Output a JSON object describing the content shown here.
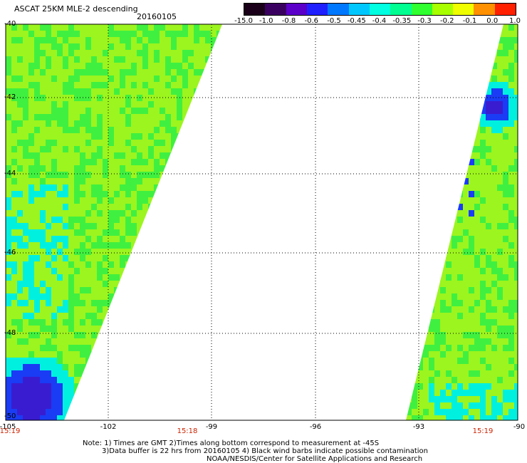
{
  "title": "ASCAT 25KM MLE-2 descending",
  "date": "20160105",
  "colorbar": {
    "labels": [
      "-15.0",
      "-1.0",
      "-0.8",
      "-0.6",
      "-0.5",
      "-0.45",
      "-0.4",
      "-0.35",
      "-0.3",
      "-0.2",
      "-0.1",
      "0.0",
      "1.0"
    ],
    "colors": [
      "#1a0018",
      "#3a0060",
      "#5a00c8",
      "#2020ff",
      "#0078ff",
      "#00c8ff",
      "#00ffe0",
      "#00ff90",
      "#30ff30",
      "#a8ff00",
      "#f0ff00",
      "#ff9000",
      "#ff2000"
    ]
  },
  "map": {
    "lat_ticks": [
      "-40",
      "-42",
      "-44",
      "-46",
      "-48",
      "-50"
    ],
    "lon_ticks": [
      "-105",
      "-102",
      "-99",
      "-96",
      "-93",
      "-90"
    ],
    "time_labels": [
      "15:19",
      "15:18",
      "15:19"
    ],
    "swath_colors": {
      "main": "#9cf51e",
      "green": "#40f040",
      "cyan": "#00f0e0",
      "blue": "#1a3cf5",
      "purple": "#3a1cd0"
    }
  },
  "notes": {
    "line1": "Note: 1) Times are GMT 2)Times along bottom correspond to measurement at -45S",
    "line2": "3)Data buffer is 22 hrs from 20160105 4) Black wind barbs indicate possible contamination",
    "line3": "NOAA/NESDIS/Center for Satellite Applications and Research"
  }
}
